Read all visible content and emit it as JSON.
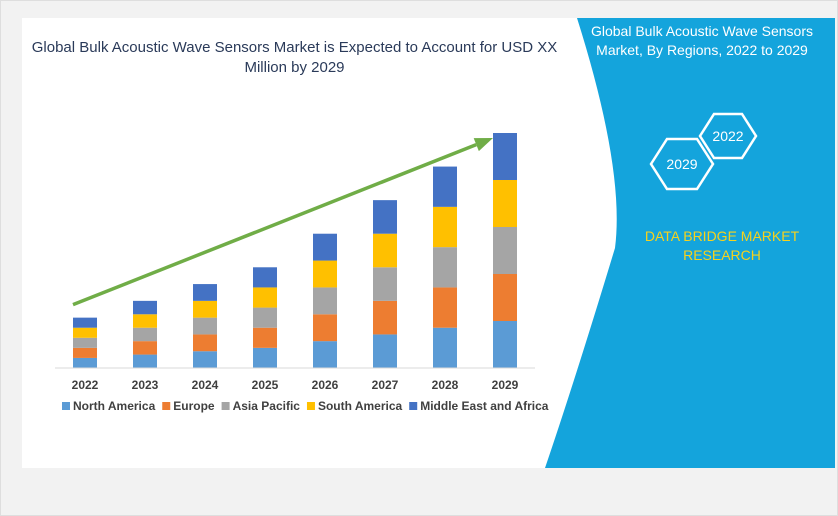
{
  "panel": {
    "title": "Global Bulk Acoustic Wave Sensors Market, By Regions, 2022 to 2029",
    "hex_labels": [
      "2022",
      "2029"
    ],
    "brand": "DATA BRIDGE MARKET RESEARCH",
    "colors": {
      "panel_bg": "#14a4dc",
      "hex_stroke": "#ffffff",
      "brand_text": "#f7d21c"
    }
  },
  "chart_data": {
    "type": "bar",
    "stacked": true,
    "title": "Global Bulk Acoustic Wave Sensors Market is Expected to Account for USD XX Million by 2029",
    "categories": [
      "2022",
      "2023",
      "2024",
      "2025",
      "2026",
      "2027",
      "2028",
      "2029"
    ],
    "series": [
      {
        "name": "North America",
        "color": "#5b9bd5",
        "values": [
          1.5,
          2.0,
          2.5,
          3.0,
          4.0,
          5.0,
          6.0,
          7.0
        ]
      },
      {
        "name": "Europe",
        "color": "#ed7d31",
        "values": [
          1.5,
          2.0,
          2.5,
          3.0,
          4.0,
          5.0,
          6.0,
          7.0
        ]
      },
      {
        "name": "Asia Pacific",
        "color": "#a5a5a5",
        "values": [
          1.5,
          2.0,
          2.5,
          3.0,
          4.0,
          5.0,
          6.0,
          7.0
        ]
      },
      {
        "name": "South America",
        "color": "#ffc000",
        "values": [
          1.5,
          2.0,
          2.5,
          3.0,
          4.0,
          5.0,
          6.0,
          7.0
        ]
      },
      {
        "name": "Middle East and Africa",
        "color": "#4472c4",
        "values": [
          1.5,
          2.0,
          2.5,
          3.0,
          4.0,
          5.0,
          6.0,
          7.0
        ]
      }
    ],
    "ylim": [
      0,
      35
    ],
    "legend": "bottom",
    "grid": false,
    "trend_arrow": {
      "color": "#70ad47"
    }
  }
}
